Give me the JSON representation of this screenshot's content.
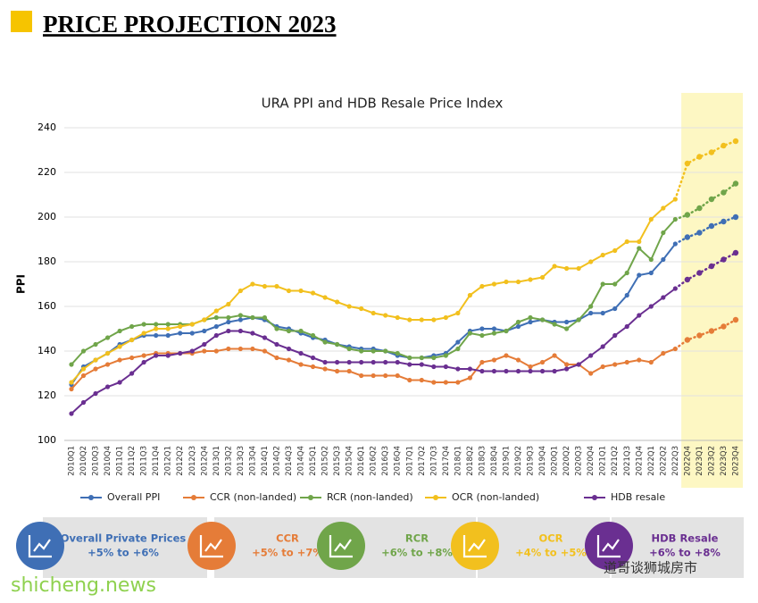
{
  "header": {
    "title": "PRICE PROJECTION 2023"
  },
  "chart_data": {
    "type": "line",
    "title": "URA PPI and HDB Resale Price Index",
    "y_label": "PPI",
    "categories": [
      "2010Q1",
      "2010Q2",
      "2010Q3",
      "2010Q4",
      "2011Q1",
      "2011Q2",
      "2011Q3",
      "2011Q4",
      "2012Q1",
      "2012Q2",
      "2012Q3",
      "2012Q4",
      "2013Q1",
      "2013Q2",
      "2013Q3",
      "2013Q4",
      "2014Q1",
      "2014Q2",
      "2014Q3",
      "2014Q4",
      "2015Q1",
      "2015Q2",
      "2015Q3",
      "2015Q4",
      "2016Q1",
      "2016Q2",
      "2016Q3",
      "2016Q4",
      "2017Q1",
      "2017Q2",
      "2017Q3",
      "2017Q4",
      "2018Q1",
      "2018Q2",
      "2018Q3",
      "2018Q4",
      "2019Q1",
      "2019Q2",
      "2019Q3",
      "2019Q4",
      "2020Q1",
      "2020Q2",
      "2020Q3",
      "2020Q4",
      "2021Q1",
      "2021Q2",
      "2021Q3",
      "2021Q4",
      "2022Q1",
      "2022Q2",
      "2022Q3",
      "2022Q4",
      "2023Q1",
      "2023Q2",
      "2023Q3",
      "2023Q4"
    ],
    "projection_start": "2022Q4",
    "ylim": [
      100,
      240
    ],
    "yticks": [
      100,
      120,
      140,
      160,
      180,
      200,
      220,
      240
    ],
    "series": [
      {
        "name": "Overall PPI",
        "color": "#3f6fb5",
        "values": [
          125,
          133,
          136,
          139,
          143,
          145,
          147,
          147,
          147,
          148,
          148,
          149,
          151,
          153,
          154,
          155,
          154,
          151,
          150,
          148,
          146,
          145,
          143,
          142,
          141,
          141,
          140,
          138,
          137,
          137,
          138,
          139,
          144,
          149,
          150,
          150,
          149,
          151,
          153,
          154,
          153,
          153,
          154,
          157,
          157,
          159,
          165,
          174,
          175,
          181,
          188,
          191,
          193,
          196,
          198,
          200
        ]
      },
      {
        "name": "CCR (non-landed)",
        "color": "#e57c38",
        "values": [
          123,
          129,
          132,
          134,
          136,
          137,
          138,
          139,
          139,
          139,
          139,
          140,
          140,
          141,
          141,
          141,
          140,
          137,
          136,
          134,
          133,
          132,
          131,
          131,
          129,
          129,
          129,
          129,
          127,
          127,
          126,
          126,
          126,
          128,
          135,
          136,
          138,
          136,
          133,
          135,
          138,
          134,
          134,
          130,
          133,
          134,
          135,
          136,
          135,
          139,
          141,
          145,
          147,
          149,
          151,
          154
        ]
      },
      {
        "name": "RCR (non-landed)",
        "color": "#70a54a",
        "values": [
          134,
          140,
          143,
          146,
          149,
          151,
          152,
          152,
          152,
          152,
          152,
          154,
          155,
          155,
          156,
          155,
          155,
          150,
          149,
          149,
          147,
          144,
          143,
          141,
          140,
          140,
          140,
          139,
          137,
          137,
          137,
          138,
          141,
          148,
          147,
          148,
          149,
          153,
          155,
          154,
          152,
          150,
          154,
          160,
          170,
          170,
          175,
          186,
          181,
          193,
          199,
          201,
          204,
          208,
          211,
          215
        ]
      },
      {
        "name": "OCR (non-landed)",
        "color": "#f2c01e",
        "values": [
          126,
          132,
          136,
          139,
          142,
          145,
          148,
          150,
          150,
          151,
          152,
          154,
          158,
          161,
          167,
          170,
          169,
          169,
          167,
          167,
          166,
          164,
          162,
          160,
          159,
          157,
          156,
          155,
          154,
          154,
          154,
          155,
          157,
          165,
          169,
          170,
          171,
          171,
          172,
          173,
          178,
          177,
          177,
          180,
          183,
          185,
          189,
          189,
          199,
          204,
          208,
          224,
          227,
          229,
          232,
          234
        ]
      },
      {
        "name": "HDB resale",
        "color": "#6a2f91",
        "values": [
          112,
          117,
          121,
          124,
          126,
          130,
          135,
          138,
          138,
          139,
          140,
          143,
          147,
          149,
          149,
          148,
          146,
          143,
          141,
          139,
          137,
          135,
          135,
          135,
          135,
          135,
          135,
          135,
          134,
          134,
          133,
          133,
          132,
          132,
          131,
          131,
          131,
          131,
          131,
          131,
          131,
          132,
          134,
          138,
          142,
          147,
          151,
          156,
          160,
          164,
          168,
          172,
          175,
          178,
          181,
          184
        ]
      }
    ]
  },
  "badges": [
    {
      "title": "Overall Private Prices",
      "range": "+5% to +6%",
      "color": "#3f6fb5"
    },
    {
      "title": "CCR",
      "range": "+5% to +7%",
      "color": "#e57c38"
    },
    {
      "title": "RCR",
      "range": "+6% to +8%",
      "color": "#70a54a"
    },
    {
      "title": "OCR",
      "range": "+4% to +5%",
      "color": "#f2c01e"
    },
    {
      "title": "HDB Resale",
      "range": "+6% to +8%",
      "color": "#6a2f91"
    }
  ],
  "watermark": {
    "site": "shicheng.news",
    "account": "道哥谈狮城房市"
  }
}
